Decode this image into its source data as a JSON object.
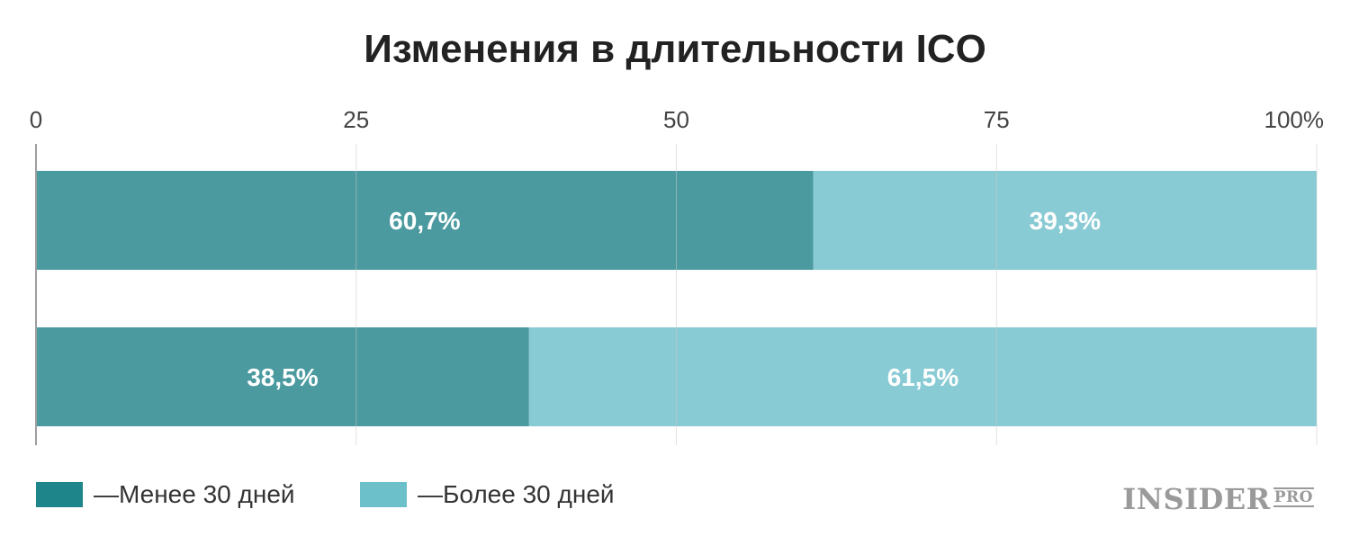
{
  "chart_data": {
    "type": "bar",
    "orientation": "horizontal",
    "stacked": true,
    "title": "Изменения в длительности ICO",
    "xlim": [
      0,
      100
    ],
    "x_ticks": [
      "0",
      "25",
      "50",
      "75",
      "100%"
    ],
    "x_tick_values": [
      0,
      25,
      50,
      75,
      100
    ],
    "grid": true,
    "categories": [
      "",
      ""
    ],
    "series": [
      {
        "name": "Менее 30 дней",
        "color": "#4a9aa0",
        "values": [
          60.7,
          38.5
        ],
        "labels": [
          "60,7%",
          "38,5%"
        ]
      },
      {
        "name": "Более 30 дней",
        "color": "#89cbd4",
        "values": [
          39.3,
          61.5
        ],
        "labels": [
          "39,3%",
          "61,5%"
        ]
      }
    ],
    "legend": {
      "position": "bottom-left",
      "items": [
        {
          "label": "—Менее 30 дней",
          "color": "#1e858a"
        },
        {
          "label": "—Более 30 дней",
          "color": "#6cc0ca"
        }
      ]
    }
  },
  "logo": {
    "main": "INSIDER",
    "sub": "PRO"
  }
}
